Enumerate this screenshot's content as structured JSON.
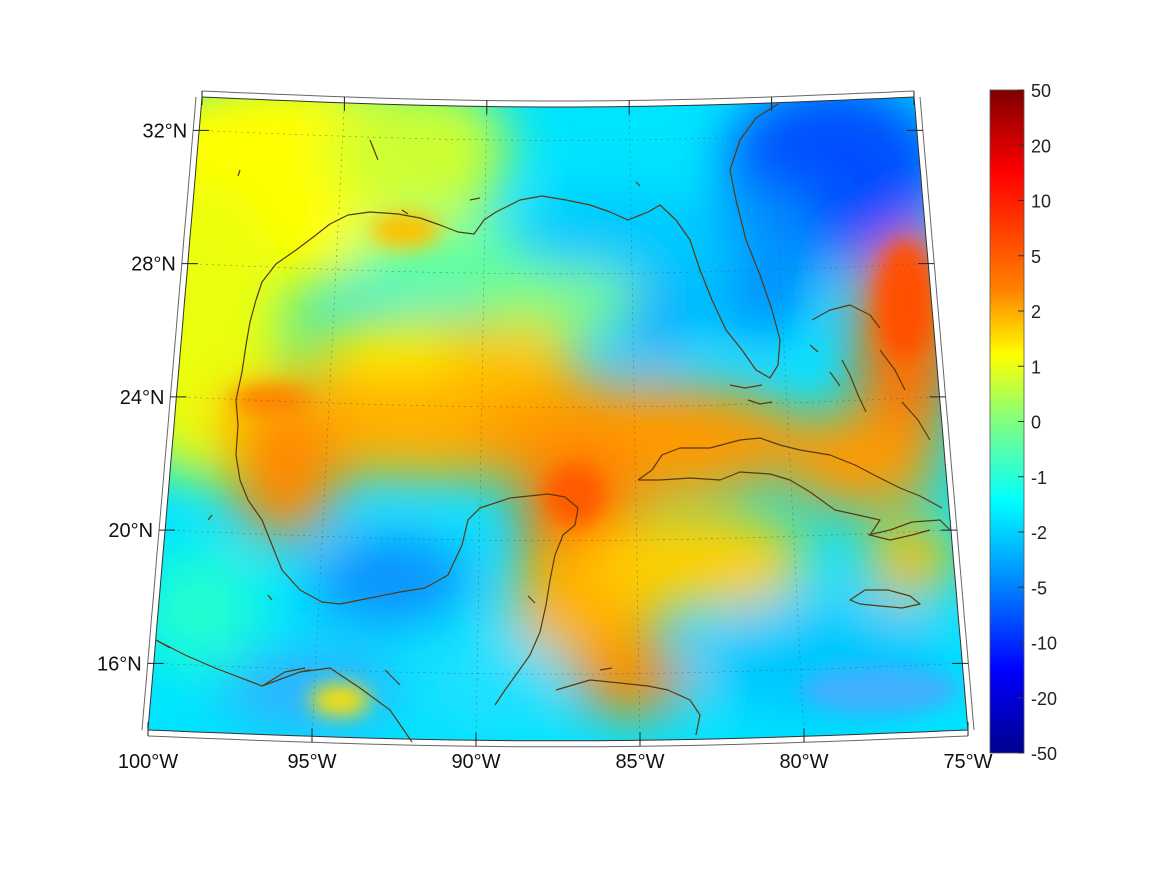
{
  "map": {
    "projection": "conic",
    "lon_range": [
      -100,
      -75
    ],
    "lat_range": [
      14,
      33
    ],
    "lon_ticks": [
      -100,
      -95,
      -90,
      -85,
      -80,
      -75
    ],
    "lat_ticks": [
      16,
      20,
      24,
      28,
      32
    ],
    "lon_tick_labels": [
      "100°W",
      "95°W",
      "90°W",
      "85°W",
      "80°W",
      "75°W"
    ],
    "lat_tick_labels": [
      "16°N",
      "20°N",
      "24°N",
      "28°N",
      "32°N"
    ],
    "coastline_color": "#5a3a10",
    "grid": true
  },
  "colorbar": {
    "tick_labels": [
      "50",
      "20",
      "10",
      "5",
      "2",
      "1",
      "0",
      "-1",
      "-2",
      "-5",
      "-10",
      "-20",
      "-50"
    ],
    "colormap": "jet",
    "colors": [
      "#7f0000",
      "#ff0000",
      "#ff8000",
      "#ffff00",
      "#80ff80",
      "#00ffff",
      "#0080ff",
      "#0000ff",
      "#00008f"
    ]
  }
}
